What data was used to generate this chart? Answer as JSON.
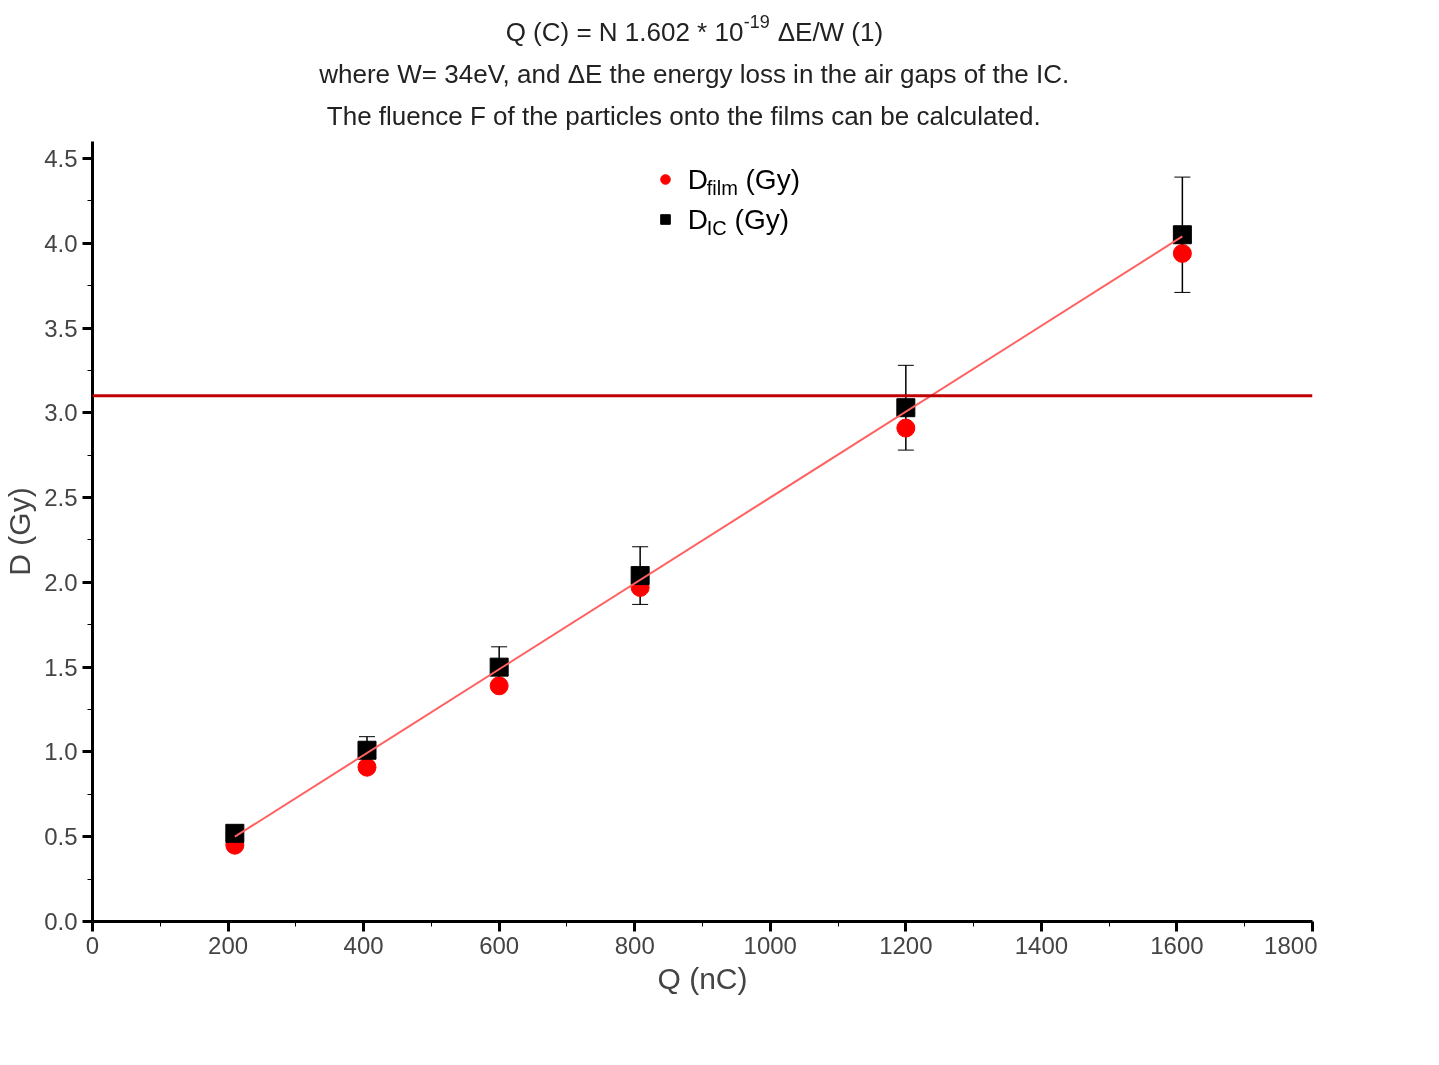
{
  "chart_data": {
    "type": "scatter",
    "xlabel": "Q (nC)",
    "ylabel": "D (Gy)",
    "annotations": [
      "Q (C) = N 1.602 * 10$^{-19}$ ΔE/W   (1)",
      "where W= 34eV, and ΔE the energy loss in the air gaps of the IC.",
      "The fluence F of the particles onto the films can be calculated."
    ],
    "x": [
      210,
      405,
      600,
      808,
      1200,
      1608
    ],
    "series": [
      {
        "name": "D$_{film}$ (Gy)",
        "color": "#ff0000",
        "marker": "circle",
        "values": [
          0.45,
          0.91,
          1.39,
          1.97,
          2.91,
          3.94
        ]
      },
      {
        "name": "D$_{IC}$ (Gy)",
        "color": "#000000",
        "marker": "square",
        "values": [
          0.52,
          1.01,
          1.5,
          2.04,
          3.03,
          4.05
        ],
        "errors": [
          0.04,
          0.08,
          0.12,
          0.17,
          0.25,
          0.34
        ]
      },
      {
        "type": "line",
        "color": "#ff6060",
        "marker": "none",
        "x": [
          210,
          1608
        ],
        "values": [
          0.5,
          4.04
        ]
      }
    ],
    "xlim": [
      0,
      1800
    ],
    "ylim": [
      0,
      4.6
    ],
    "xticks": [
      0,
      200,
      400,
      600,
      800,
      1000,
      1200,
      1400,
      1600,
      1800
    ],
    "yticks": [
      {
        "value": 0,
        "label": "0.0"
      },
      0.5,
      {
        "value": 1,
        "label": "1.0"
      },
      1.5,
      {
        "value": 2,
        "label": "2.0"
      },
      2.5,
      {
        "value": 3,
        "label": "3.0"
      },
      3.5,
      {
        "value": 4,
        "label": "4.0"
      },
      4.5
    ],
    "ref_lines": [
      {
        "axis": "y",
        "value": 3.1,
        "color": "#c00000"
      }
    ],
    "grid": false,
    "legend": "top"
  }
}
